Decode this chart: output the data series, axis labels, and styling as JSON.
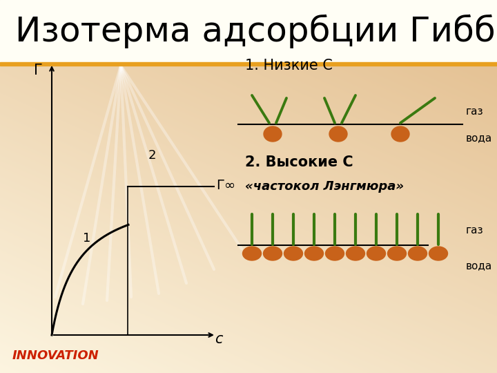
{
  "title": "Изотерма адсорбции Гиббса",
  "title_fontsize": 36,
  "label_gamma": "Г",
  "label_c": "с",
  "label_gamma_inf": "Г∞",
  "label_1": "1",
  "label_2": "2",
  "text_1_nizkie": "1. Низкие С",
  "text_2_vysokie": "2. Высокие С",
  "text_chastokolL": "«частокол Лэнгмюра»",
  "text_gaz1": "газ",
  "text_voda1": "вода",
  "text_gaz2": "газ",
  "text_voda2": "вода",
  "text_innovation": "INNOVATION",
  "orange_color": "#c8621a",
  "green_color": "#3a7a10",
  "innovation_color": "#cc2000",
  "title_bar_color": "#fffdf0",
  "accent_line_color": "#e8a020",
  "bg_light": "#fdf5d8",
  "bg_dark": "#f0c860"
}
